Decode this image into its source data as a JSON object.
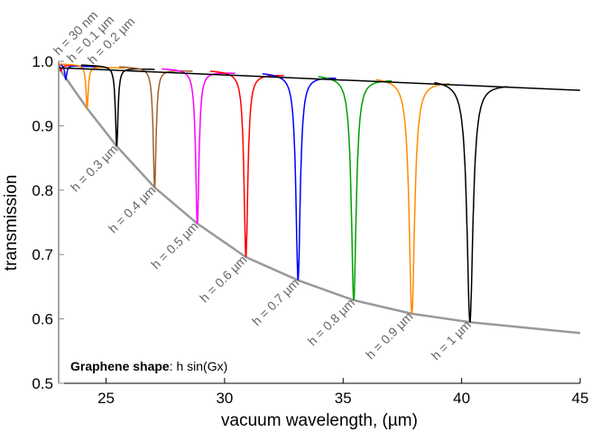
{
  "chart_data": {
    "type": "line",
    "xlabel": "vacuum wavelength, (µm)",
    "ylabel": "transmission",
    "xlim": [
      23,
      45
    ],
    "ylim": [
      0.5,
      1.0
    ],
    "xticks": [
      "25",
      "30",
      "35",
      "40",
      "45"
    ],
    "yticks": [
      "0.5",
      "0.6",
      "0.7",
      "0.8",
      "0.9",
      "1.0"
    ],
    "grid": false,
    "annotation": {
      "bold": "Graphene shape",
      "rest": ": h sin(Gx)"
    },
    "baseline_line": {
      "color": "#000000",
      "x": [
        23,
        45
      ],
      "y": [
        0.99,
        0.955
      ]
    },
    "envelope": {
      "color": "#999999",
      "x": [
        23,
        24.2,
        25.45,
        27.05,
        28.85,
        30.9,
        33.1,
        35.45,
        37.9,
        40.35,
        45
      ],
      "y": [
        0.99,
        0.927,
        0.868,
        0.804,
        0.748,
        0.696,
        0.66,
        0.629,
        0.608,
        0.595,
        0.578
      ]
    },
    "series": [
      {
        "name": "h = 30 nm",
        "color": "#ff0000",
        "center": 23.1,
        "min": 0.985
      },
      {
        "name": "h = 0.1 µm",
        "color": "#0000ff",
        "center": 23.3,
        "min": 0.972
      },
      {
        "name": "h = 0.2 µm",
        "color": "#ff8c00",
        "center": 24.2,
        "min": 0.927
      },
      {
        "name": "h = 0.3 µm",
        "color": "#000000",
        "center": 25.45,
        "min": 0.868
      },
      {
        "name": "h = 0.4 µm",
        "color": "#a0622d",
        "center": 27.05,
        "min": 0.804
      },
      {
        "name": "h = 0.5 µm",
        "color": "#ff00ff",
        "center": 28.85,
        "min": 0.748
      },
      {
        "name": "h = 0.6 µm",
        "color": "#ff0000",
        "center": 30.9,
        "min": 0.696
      },
      {
        "name": "h = 0.7 µm",
        "color": "#0000ff",
        "center": 33.1,
        "min": 0.66
      },
      {
        "name": "h = 0.8 µm",
        "color": "#00a000",
        "center": 35.45,
        "min": 0.629
      },
      {
        "name": "h = 0.9 µm",
        "color": "#ff8c00",
        "center": 37.9,
        "min": 0.608
      },
      {
        "name": "h = 1 µm",
        "color": "#000000",
        "center": 40.35,
        "min": 0.595
      }
    ]
  }
}
